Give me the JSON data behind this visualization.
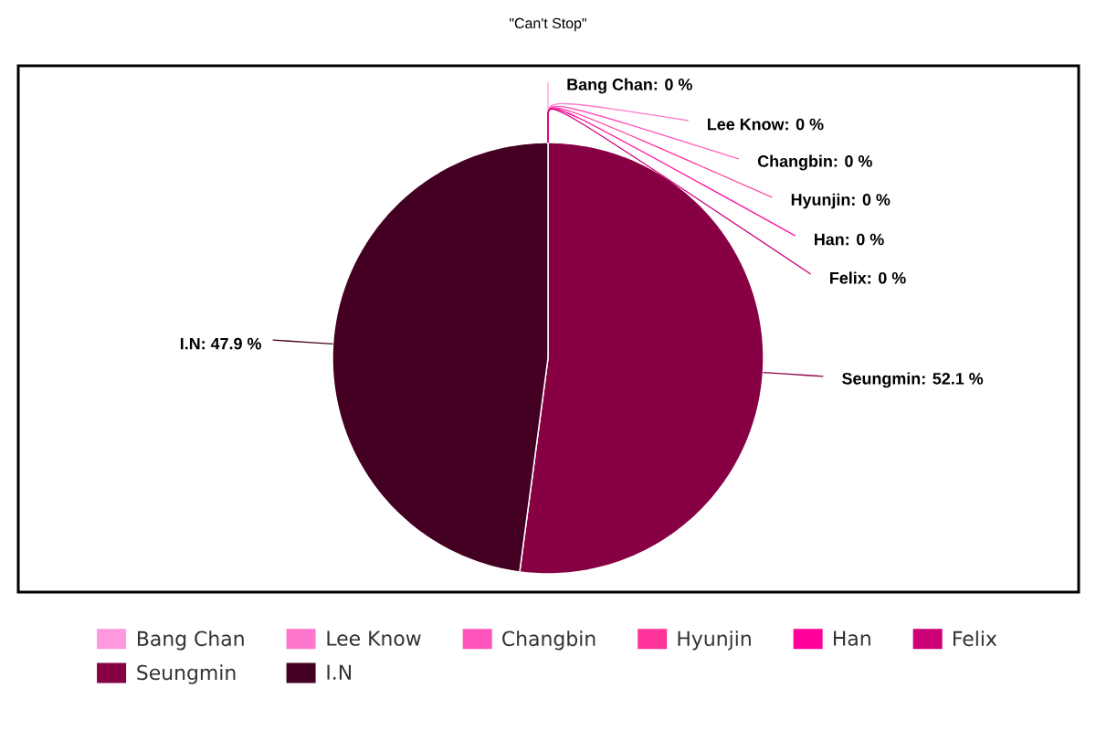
{
  "chart_data": {
    "type": "pie",
    "title": "\"Can't Stop\"",
    "categories": [
      "Bang Chan",
      "Lee Know",
      "Changbin",
      "Hyunjin",
      "Han",
      "Felix",
      "Seungmin",
      "I.N"
    ],
    "values": [
      0,
      0,
      0,
      0,
      0,
      0,
      52.1,
      47.9
    ],
    "colors": [
      "#ff99dd",
      "#ff77cc",
      "#ff55bb",
      "#ff3399",
      "#ff0099",
      "#cc0077",
      "#880044",
      "#440022"
    ],
    "value_labels": [
      "Bang Chan: 0 %",
      "Lee Know: 0 %",
      "Changbin: 0 %",
      "Hyunjin: 0 %",
      "Han: 0 %",
      "Felix: 0 %",
      "Seungmin: 52.1 %",
      "I.N: 47.9 %"
    ],
    "legend": "bottom"
  }
}
